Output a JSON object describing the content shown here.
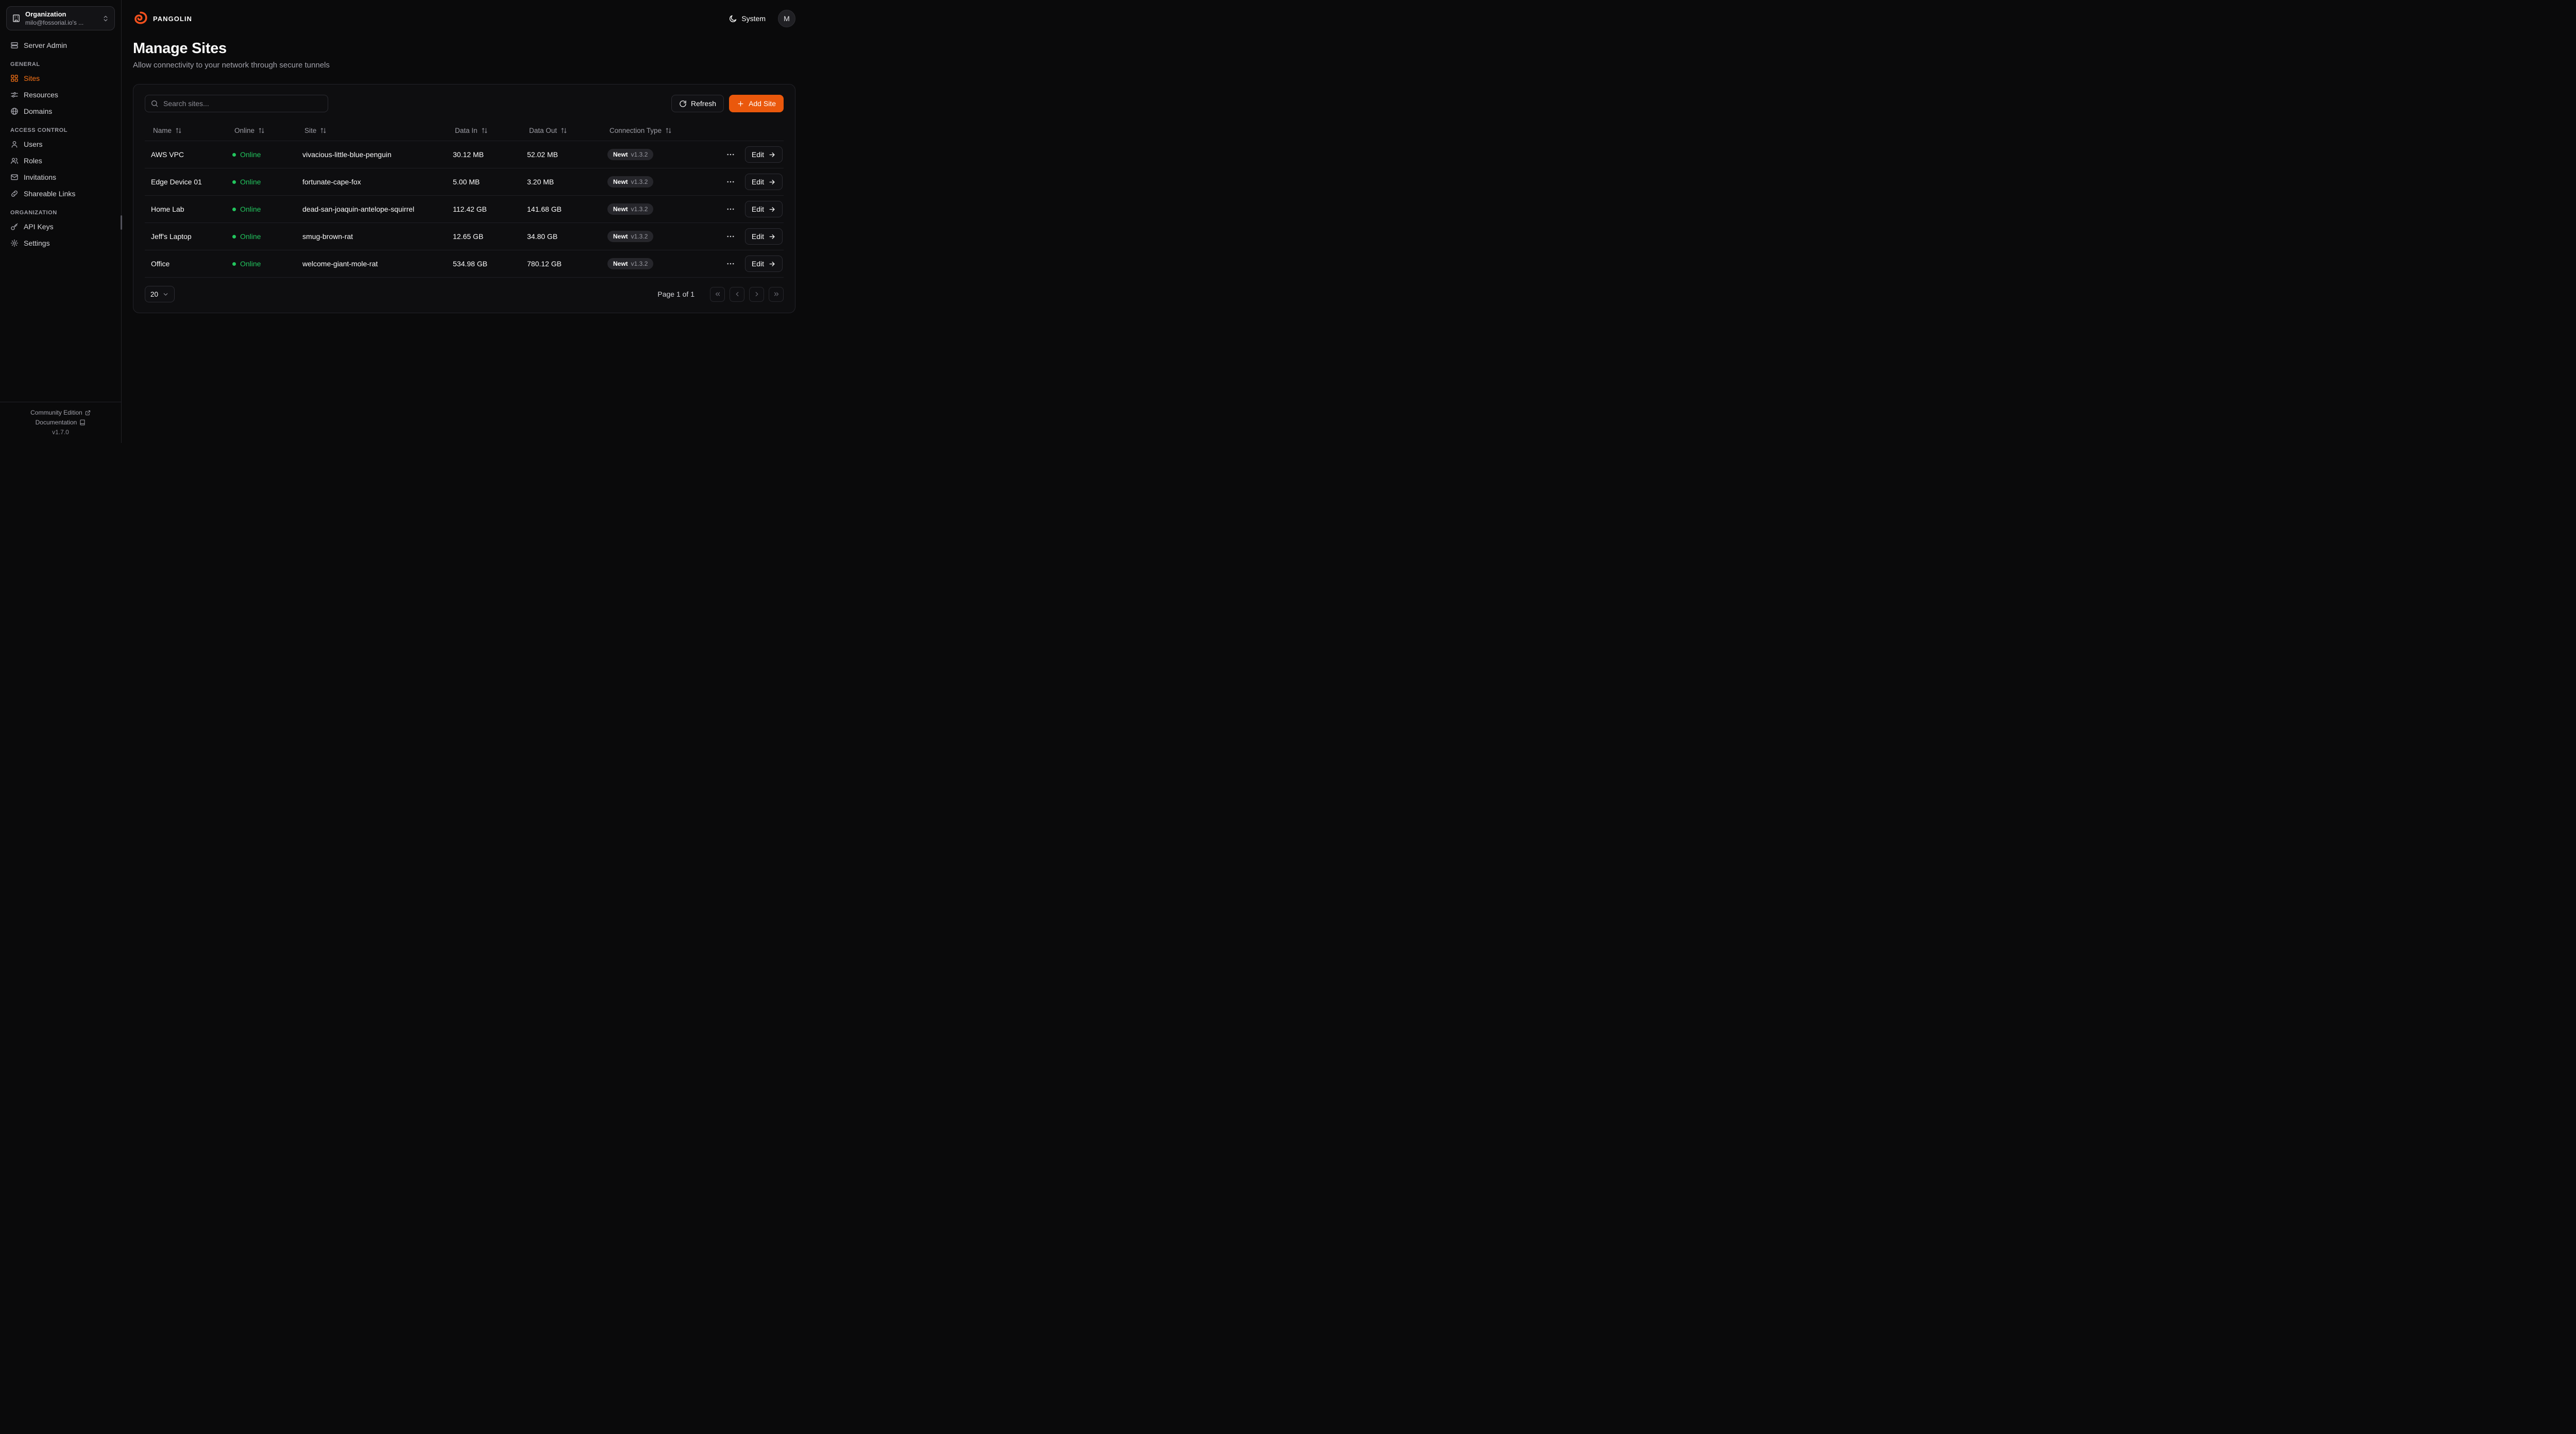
{
  "colors": {
    "accent_text": "#f97316",
    "accent_button": "#ea580c",
    "online_green": "#22c55e",
    "background": "#0a0a0b",
    "card_background": "#0e0e10"
  },
  "sidebar": {
    "org": {
      "label": "Organization",
      "sublabel": "milo@fossorial.io's ...",
      "icon": "building-icon"
    },
    "top_items": [
      {
        "label": "Server Admin",
        "icon": "server-icon"
      }
    ],
    "sections": [
      {
        "label": "GENERAL",
        "items": [
          {
            "label": "Sites",
            "icon": "grid-icon",
            "active": true
          },
          {
            "label": "Resources",
            "icon": "resources-icon"
          },
          {
            "label": "Domains",
            "icon": "globe-icon"
          }
        ]
      },
      {
        "label": "ACCESS CONTROL",
        "items": [
          {
            "label": "Users",
            "icon": "user-icon"
          },
          {
            "label": "Roles",
            "icon": "roles-icon"
          },
          {
            "label": "Invitations",
            "icon": "mail-icon"
          },
          {
            "label": "Shareable Links",
            "icon": "link-icon"
          }
        ]
      },
      {
        "label": "ORGANIZATION",
        "items": [
          {
            "label": "API Keys",
            "icon": "key-icon"
          },
          {
            "label": "Settings",
            "icon": "gear-icon"
          }
        ]
      }
    ],
    "footer": {
      "community_edition": "Community Edition",
      "documentation": "Documentation",
      "version": "v1.7.0"
    }
  },
  "topbar": {
    "brand": "PANGOLIN",
    "theme": "System",
    "avatar_initial": "M"
  },
  "page": {
    "title": "Manage Sites",
    "subtitle": "Allow connectivity to your network through secure tunnels"
  },
  "toolbar": {
    "search_placeholder": "Search sites...",
    "refresh_label": "Refresh",
    "add_site_label": "Add Site"
  },
  "table": {
    "columns": [
      "Name",
      "Online",
      "Site",
      "Data In",
      "Data Out",
      "Connection Type"
    ],
    "edit_label": "Edit",
    "rows": [
      {
        "name": "AWS VPC",
        "status": "Online",
        "site": "vivacious-little-blue-penguin",
        "data_in": "30.12 MB",
        "data_out": "52.02 MB",
        "connection": "Newt",
        "version": "v1.3.2"
      },
      {
        "name": "Edge Device 01",
        "status": "Online",
        "site": "fortunate-cape-fox",
        "data_in": "5.00 MB",
        "data_out": "3.20 MB",
        "connection": "Newt",
        "version": "v1.3.2"
      },
      {
        "name": "Home Lab",
        "status": "Online",
        "site": "dead-san-joaquin-antelope-squirrel",
        "data_in": "112.42 GB",
        "data_out": "141.68 GB",
        "connection": "Newt",
        "version": "v1.3.2"
      },
      {
        "name": "Jeff's Laptop",
        "status": "Online",
        "site": "smug-brown-rat",
        "data_in": "12.65 GB",
        "data_out": "34.80 GB",
        "connection": "Newt",
        "version": "v1.3.2"
      },
      {
        "name": "Office",
        "status": "Online",
        "site": "welcome-giant-mole-rat",
        "data_in": "534.98 GB",
        "data_out": "780.12 GB",
        "connection": "Newt",
        "version": "v1.3.2"
      }
    ]
  },
  "pagination": {
    "page_size": "20",
    "status": "Page 1 of 1"
  }
}
